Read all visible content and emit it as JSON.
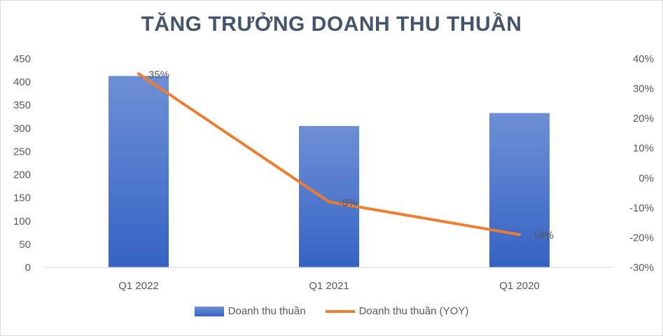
{
  "chart_data": {
    "type": "bar",
    "title": "TĂNG TRƯỞNG DOANH THU THUẦN",
    "categories": [
      "Q1 2022",
      "Q1 2021",
      "Q1 2020"
    ],
    "series": [
      {
        "name": "Doanh thu thuần",
        "type": "bar",
        "axis": "left",
        "values": [
          413,
          305,
          333
        ],
        "color": "#4472c4"
      },
      {
        "name": "Doanh thu thuần (YOY)",
        "type": "line",
        "axis": "right",
        "values": [
          35,
          -8,
          -19
        ],
        "labels": [
          "35%",
          "-8%",
          "-19%"
        ],
        "color": "#ed7d31"
      }
    ],
    "y_left": {
      "min": 0,
      "max": 450,
      "step": 50,
      "ticks": [
        "0",
        "50",
        "100",
        "150",
        "200",
        "250",
        "300",
        "350",
        "400",
        "450"
      ]
    },
    "y_right": {
      "min": -30,
      "max": 40,
      "step": 10,
      "ticks": [
        "-30%",
        "-20%",
        "-10%",
        "0%",
        "10%",
        "20%",
        "30%",
        "40%"
      ]
    },
    "grid": false,
    "legend": "bottom"
  }
}
